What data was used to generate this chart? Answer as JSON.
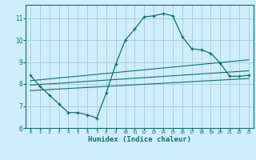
{
  "title": "",
  "xlabel": "Humidex (Indice chaleur)",
  "bg_color": "#cceeff",
  "grid_color": "#aacccc",
  "line_color": "#1a6b6b",
  "xlim": [
    -0.5,
    23.5
  ],
  "ylim": [
    6,
    11.6
  ],
  "xticks": [
    0,
    1,
    2,
    3,
    4,
    5,
    6,
    7,
    8,
    9,
    10,
    11,
    12,
    13,
    14,
    15,
    16,
    17,
    18,
    19,
    20,
    21,
    22,
    23
  ],
  "yticks": [
    6,
    7,
    8,
    9,
    10,
    11
  ],
  "main_x": [
    0,
    1,
    2,
    3,
    4,
    5,
    6,
    7,
    8,
    9,
    10,
    11,
    12,
    13,
    14,
    15,
    16,
    17,
    18,
    19,
    20,
    21,
    22,
    23
  ],
  "main_y": [
    8.4,
    7.9,
    7.5,
    7.1,
    6.7,
    6.7,
    6.6,
    6.45,
    7.6,
    8.9,
    10.0,
    10.5,
    11.05,
    11.1,
    11.2,
    11.1,
    10.15,
    9.6,
    9.55,
    9.4,
    8.95,
    8.35,
    8.35,
    8.4
  ],
  "line1_x": [
    0,
    23
  ],
  "line1_y": [
    8.15,
    9.1
  ],
  "line2_x": [
    0,
    23
  ],
  "line2_y": [
    7.95,
    8.6
  ],
  "line3_x": [
    0,
    23
  ],
  "line3_y": [
    7.7,
    8.25
  ]
}
